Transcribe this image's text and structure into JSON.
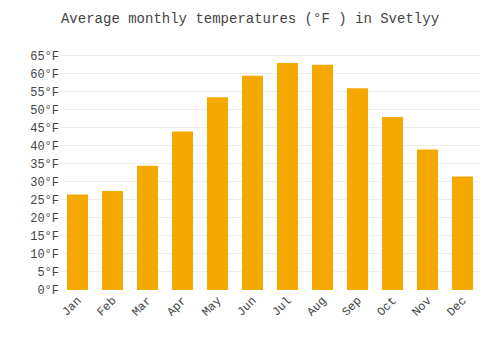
{
  "chart_data": {
    "type": "bar",
    "title": "Average monthly temperatures (°F ) in Svetlyy",
    "categories": [
      "Jan",
      "Feb",
      "Mar",
      "Apr",
      "May",
      "Jun",
      "Jul",
      "Aug",
      "Sep",
      "Oct",
      "Nov",
      "Dec"
    ],
    "values": [
      26.5,
      27.5,
      34.5,
      44.0,
      53.5,
      59.5,
      63.0,
      62.5,
      56.0,
      48.0,
      39.0,
      31.5
    ],
    "color": "#F5A800",
    "ylim": [
      0,
      68
    ],
    "yticks": [
      {
        "value": 0,
        "label": "0°F"
      },
      {
        "value": 5,
        "label": "5°F"
      },
      {
        "value": 10,
        "label": "10°F"
      },
      {
        "value": 15,
        "label": "15°F"
      },
      {
        "value": 20,
        "label": "20°F"
      },
      {
        "value": 25,
        "label": "25°F"
      },
      {
        "value": 30,
        "label": "30°F"
      },
      {
        "value": 35,
        "label": "35°F"
      },
      {
        "value": 40,
        "label": "40°F"
      },
      {
        "value": 45,
        "label": "45°F"
      },
      {
        "value": 50,
        "label": "50°F"
      },
      {
        "value": 55,
        "label": "55°F"
      },
      {
        "value": 60,
        "label": "60°F"
      },
      {
        "value": 65,
        "label": "65°F"
      }
    ],
    "grid": true
  }
}
